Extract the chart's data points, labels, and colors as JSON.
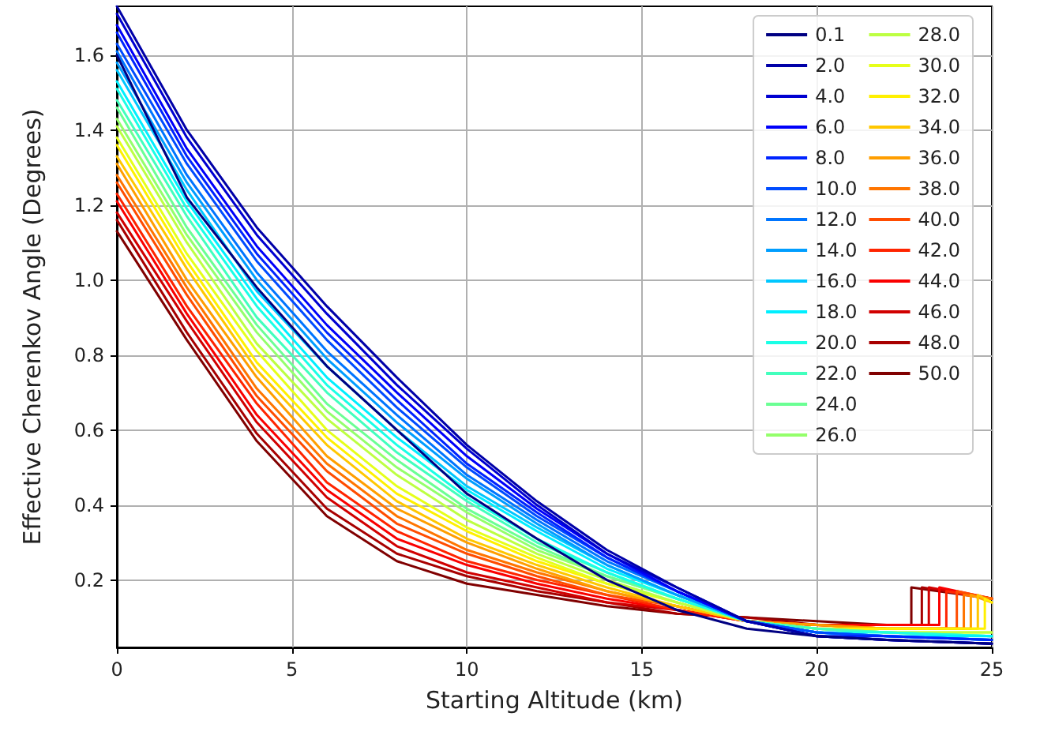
{
  "chart_data": {
    "type": "line",
    "xlabel": "Starting Altitude (km)",
    "ylabel": "Effective Cherenkov Angle (Degrees)",
    "x": [
      0,
      2,
      4,
      6,
      8,
      10,
      12,
      14,
      16,
      18,
      20,
      22,
      25
    ],
    "xlim": [
      0,
      25
    ],
    "xticks": [
      0,
      5,
      10,
      15,
      20,
      25
    ],
    "ylim": [
      0.02,
      1.73
    ],
    "yticks": [
      0.2,
      0.4,
      0.6,
      0.8,
      {
        "value": 1.0,
        "label": "1.0"
      },
      1.2,
      1.4,
      1.6
    ],
    "grid": true,
    "legend": "top right",
    "line_style": "solid",
    "marker": "none",
    "series": [
      {
        "name": "0.1",
        "color": "#000082",
        "values": [
          1.6,
          1.22,
          0.98,
          0.77,
          0.6,
          0.43,
          0.31,
          0.2,
          0.12,
          0.07,
          0.05,
          0.04,
          0.03
        ]
      },
      {
        "name": "2.0",
        "color": "#0000a8",
        "values": [
          1.73,
          1.4,
          1.14,
          0.93,
          0.74,
          0.56,
          0.41,
          0.28,
          0.18,
          0.09,
          0.05,
          0.04,
          0.03
        ]
      },
      {
        "name": "4.0",
        "color": "#0000d1",
        "values": [
          1.71,
          1.38,
          1.12,
          0.91,
          0.72,
          0.55,
          0.4,
          0.27,
          0.18,
          0.09,
          0.05,
          0.04,
          0.03
        ]
      },
      {
        "name": "6.0",
        "color": "#0000fa",
        "values": [
          1.68,
          1.35,
          1.09,
          0.88,
          0.7,
          0.53,
          0.39,
          0.27,
          0.17,
          0.09,
          0.05,
          0.04,
          0.03
        ]
      },
      {
        "name": "8.0",
        "color": "#0024ff",
        "values": [
          1.66,
          1.33,
          1.07,
          0.86,
          0.68,
          0.51,
          0.38,
          0.26,
          0.17,
          0.09,
          0.05,
          0.05,
          0.04
        ]
      },
      {
        "name": "10.0",
        "color": "#004cff",
        "values": [
          1.63,
          1.31,
          1.05,
          0.84,
          0.66,
          0.5,
          0.37,
          0.26,
          0.17,
          0.09,
          0.06,
          0.05,
          0.04
        ]
      },
      {
        "name": "12.0",
        "color": "#0075ff",
        "values": [
          1.61,
          1.28,
          1.02,
          0.81,
          0.64,
          0.48,
          0.36,
          0.25,
          0.17,
          0.09,
          0.06,
          0.05,
          0.04
        ]
      },
      {
        "name": "14.0",
        "color": "#009eff",
        "values": [
          1.58,
          1.26,
          1.0,
          0.79,
          0.62,
          0.47,
          0.35,
          0.24,
          0.16,
          0.09,
          0.06,
          0.05,
          0.04
        ]
      },
      {
        "name": "16.0",
        "color": "#00c7ff",
        "values": [
          1.56,
          1.24,
          0.97,
          0.77,
          0.6,
          0.45,
          0.34,
          0.24,
          0.16,
          0.09,
          0.06,
          0.05,
          0.04
        ]
      },
      {
        "name": "18.0",
        "color": "#00efff",
        "values": [
          1.53,
          1.21,
          0.95,
          0.74,
          0.58,
          0.44,
          0.33,
          0.23,
          0.16,
          0.09,
          0.06,
          0.05,
          0.05
        ]
      },
      {
        "name": "20.0",
        "color": "#1affe6",
        "values": [
          1.51,
          1.19,
          0.93,
          0.72,
          0.56,
          0.42,
          0.31,
          0.22,
          0.15,
          0.09,
          0.06,
          0.06,
          0.05
        ]
      },
      {
        "name": "22.0",
        "color": "#42ffbd",
        "values": [
          1.48,
          1.17,
          0.9,
          0.7,
          0.54,
          0.41,
          0.3,
          0.22,
          0.15,
          0.09,
          0.07,
          0.06,
          0.05
        ]
      },
      {
        "name": "24.0",
        "color": "#6bff94",
        "values": [
          1.46,
          1.14,
          0.88,
          0.67,
          0.52,
          0.39,
          0.29,
          0.21,
          0.15,
          0.09,
          0.07,
          0.06,
          0.05
        ]
      },
      {
        "name": "26.0",
        "color": "#94ff6b",
        "values": [
          1.43,
          1.12,
          0.86,
          0.65,
          0.5,
          0.38,
          0.28,
          0.21,
          0.15,
          0.09,
          0.07,
          0.06,
          0.05
        ]
      },
      {
        "name": "28.0",
        "color": "#bdff42",
        "values": [
          1.41,
          1.1,
          0.83,
          0.63,
          0.48,
          0.36,
          0.27,
          0.2,
          0.14,
          0.09,
          0.07,
          0.06,
          0.06
        ]
      },
      {
        "name": "30.0",
        "color": "#e6ff1a",
        "values": [
          1.38,
          1.07,
          0.81,
          0.6,
          0.45,
          0.34,
          0.26,
          0.19,
          0.14,
          0.09,
          0.07,
          0.06,
          0.06
        ]
      },
      {
        "name": "32.0",
        "color": "#fff000",
        "x": [
          0,
          2,
          4,
          6,
          8,
          10,
          12,
          14,
          16,
          18,
          20,
          22,
          24.8,
          24.8,
          25
        ],
        "values": [
          1.36,
          1.05,
          0.78,
          0.58,
          0.43,
          0.33,
          0.25,
          0.19,
          0.14,
          0.09,
          0.07,
          0.07,
          0.07,
          0.15,
          0.14
        ]
      },
      {
        "name": "34.0",
        "color": "#ffc700",
        "x": [
          0,
          2,
          4,
          6,
          8,
          10,
          12,
          14,
          16,
          18,
          20,
          22,
          24.6,
          24.6,
          25
        ],
        "values": [
          1.33,
          1.03,
          0.76,
          0.56,
          0.41,
          0.31,
          0.24,
          0.18,
          0.13,
          0.09,
          0.07,
          0.07,
          0.07,
          0.16,
          0.14
        ]
      },
      {
        "name": "36.0",
        "color": "#ff9e00",
        "x": [
          0,
          2,
          4,
          6,
          8,
          10,
          12,
          14,
          16,
          18,
          20,
          22,
          24.4,
          24.4,
          25
        ],
        "values": [
          1.31,
          1.0,
          0.74,
          0.53,
          0.39,
          0.3,
          0.23,
          0.17,
          0.13,
          0.09,
          0.08,
          0.07,
          0.07,
          0.16,
          0.14
        ]
      },
      {
        "name": "38.0",
        "color": "#ff7500",
        "x": [
          0,
          2,
          4,
          6,
          8,
          10,
          12,
          14,
          16,
          18,
          20,
          22,
          24.2,
          24.2,
          25
        ],
        "values": [
          1.28,
          0.98,
          0.71,
          0.51,
          0.37,
          0.28,
          0.22,
          0.17,
          0.13,
          0.09,
          0.08,
          0.07,
          0.07,
          0.16,
          0.15
        ]
      },
      {
        "name": "40.0",
        "color": "#ff4c00",
        "x": [
          0,
          2,
          4,
          6,
          8,
          10,
          12,
          14,
          16,
          18,
          20,
          22,
          24.0,
          24.0,
          25
        ],
        "values": [
          1.26,
          0.96,
          0.69,
          0.49,
          0.35,
          0.27,
          0.21,
          0.16,
          0.13,
          0.09,
          0.08,
          0.07,
          0.07,
          0.17,
          0.15
        ]
      },
      {
        "name": "42.0",
        "color": "#ff2400",
        "x": [
          0,
          2,
          4,
          6,
          8,
          10,
          12,
          14,
          16,
          18,
          20,
          22,
          23.7,
          23.7,
          25
        ],
        "values": [
          1.23,
          0.93,
          0.67,
          0.46,
          0.33,
          0.25,
          0.2,
          0.16,
          0.12,
          0.09,
          0.08,
          0.07,
          0.07,
          0.17,
          0.15
        ]
      },
      {
        "name": "44.0",
        "color": "#fa0000",
        "x": [
          0,
          2,
          4,
          6,
          8,
          10,
          12,
          14,
          16,
          18,
          20,
          22,
          23.5,
          23.5,
          25
        ],
        "values": [
          1.21,
          0.91,
          0.64,
          0.44,
          0.31,
          0.24,
          0.19,
          0.15,
          0.12,
          0.09,
          0.08,
          0.08,
          0.08,
          0.18,
          0.15
        ]
      },
      {
        "name": "46.0",
        "color": "#d10000",
        "x": [
          0,
          2,
          4,
          6,
          8,
          10,
          12,
          14,
          16,
          18,
          20,
          22,
          23.2,
          23.2,
          25
        ],
        "values": [
          1.18,
          0.89,
          0.62,
          0.42,
          0.29,
          0.22,
          0.18,
          0.14,
          0.12,
          0.09,
          0.08,
          0.08,
          0.08,
          0.18,
          0.15
        ]
      },
      {
        "name": "48.0",
        "color": "#a80000",
        "x": [
          0,
          2,
          4,
          6,
          8,
          10,
          12,
          14,
          16,
          18,
          20,
          22,
          23.0,
          23.0,
          25
        ],
        "values": [
          1.16,
          0.86,
          0.59,
          0.39,
          0.27,
          0.21,
          0.17,
          0.14,
          0.11,
          0.1,
          0.08,
          0.08,
          0.08,
          0.18,
          0.15
        ]
      },
      {
        "name": "50.0",
        "color": "#800000",
        "x": [
          0,
          2,
          4,
          6,
          8,
          10,
          12,
          14,
          16,
          18,
          20,
          22,
          22.7,
          22.7,
          25
        ],
        "values": [
          1.13,
          0.84,
          0.57,
          0.37,
          0.25,
          0.19,
          0.16,
          0.13,
          0.11,
          0.1,
          0.09,
          0.08,
          0.08,
          0.18,
          0.15
        ]
      }
    ]
  }
}
